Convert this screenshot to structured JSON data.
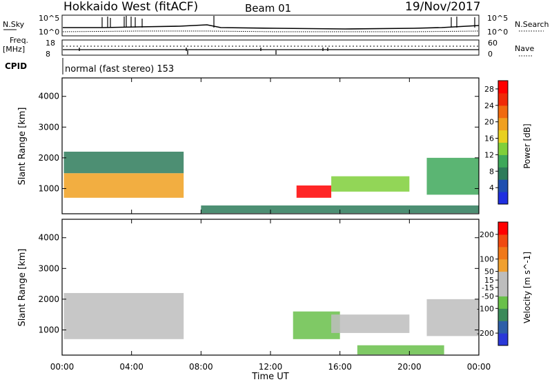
{
  "header": {
    "station": "Hokkaido West (fitACF)",
    "beam": "Beam 01",
    "date": "19/Nov/2017"
  },
  "status_panel": {
    "nsky_label": "N.Sky",
    "nsky_top": "10^5",
    "nsky_bottom": "10^0",
    "nsearch_top": "10^5",
    "nsearch_bottom": "10^0",
    "nsearch_label": "N.Search",
    "freq_label": "Freq.",
    "freq_unit": "[MHz]",
    "freq_top": "18",
    "freq_bottom": "8",
    "nave_top": "60",
    "nave_bottom": "0",
    "nave_label": "Nave",
    "cpid_label": "CPID",
    "mode_text": "normal (fast stereo) 153"
  },
  "colors": {
    "power_scale": [
      "#1f2fe0",
      "#1e4fb0",
      "#2e7b5a",
      "#3ea85a",
      "#7fcf3a",
      "#e8d020",
      "#f0a020",
      "#f06a10",
      "#f02a08",
      "#ff0000"
    ],
    "velocity_scale": [
      "#2a38d8",
      "#2d5ea8",
      "#3b8a5a",
      "#69c04a",
      "#bdbdbd",
      "#bdbdbd",
      "#f0a030",
      "#f07818",
      "#f04a10",
      "#ff0000"
    ]
  },
  "chart_data": [
    {
      "type": "heatmap",
      "name": "Power",
      "xlabel": "Time UT",
      "ylabel": "Slant Range [km]",
      "x_ticks": [
        "00:00",
        "04:00",
        "08:00",
        "12:00",
        "16:00",
        "20:00",
        "00:00"
      ],
      "y_ticks": [
        1000,
        2000,
        3000,
        4000
      ],
      "ylim": [
        180,
        4600
      ],
      "colorbar": {
        "label": "Power [dB]",
        "ticks": [
          4,
          8,
          12,
          16,
          20,
          24,
          28
        ],
        "range": [
          0,
          30
        ]
      },
      "regions": [
        {
          "t0": 0.1,
          "t1": 7.0,
          "r0": 700,
          "r1": 1500,
          "dB": 20
        },
        {
          "t0": 0.1,
          "t1": 7.0,
          "r0": 1500,
          "r1": 2200,
          "dB": 6
        },
        {
          "t0": 13.5,
          "t1": 15.5,
          "r0": 700,
          "r1": 1100,
          "dB": 28
        },
        {
          "t0": 15.5,
          "t1": 20.0,
          "r0": 900,
          "r1": 1400,
          "dB": 14
        },
        {
          "t0": 21.0,
          "t1": 24.0,
          "r0": 800,
          "r1": 2000,
          "dB": 10
        },
        {
          "t0": 8.0,
          "t1": 24.0,
          "r0": 200,
          "r1": 450,
          "dB": 6
        }
      ]
    },
    {
      "type": "heatmap",
      "name": "Velocity",
      "xlabel": "Time UT",
      "ylabel": "Slant Range [km]",
      "x_ticks": [
        "00:00",
        "04:00",
        "08:00",
        "12:00",
        "16:00",
        "20:00",
        "00:00"
      ],
      "y_ticks": [
        1000,
        2000,
        3000,
        4000
      ],
      "ylim": [
        180,
        4600
      ],
      "colorbar": {
        "label": "Velocity [m s^-1]",
        "ticks": [
          200,
          100,
          50,
          15,
          -15,
          -50,
          -100,
          -200
        ],
        "range": [
          -250,
          250
        ]
      },
      "regions": [
        {
          "t0": 0.1,
          "t1": 7.0,
          "r0": 700,
          "r1": 2200,
          "v": 0
        },
        {
          "t0": 13.3,
          "t1": 16.0,
          "r0": 700,
          "r1": 1600,
          "v": -80
        },
        {
          "t0": 15.5,
          "t1": 20.0,
          "r0": 900,
          "r1": 1500,
          "v": 20
        },
        {
          "t0": 21.0,
          "t1": 24.0,
          "r0": 800,
          "r1": 2000,
          "v": 0
        },
        {
          "t0": 17.0,
          "t1": 22.0,
          "r0": 200,
          "r1": 500,
          "v": -100
        }
      ]
    }
  ]
}
